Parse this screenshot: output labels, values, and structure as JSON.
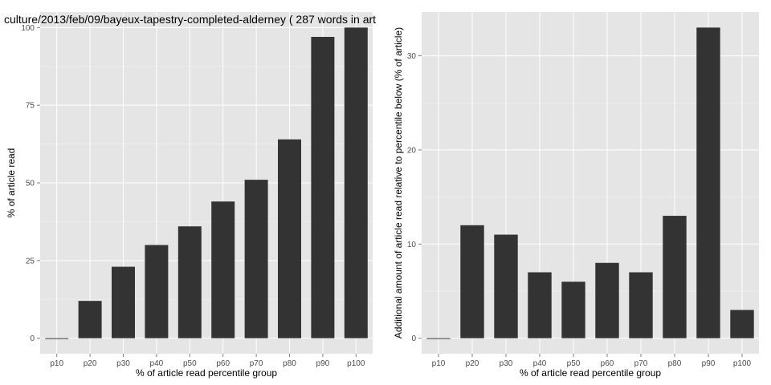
{
  "chart_data": [
    {
      "type": "bar",
      "title": "culture/2013/feb/09/bayeux-tapestry-completed-alderney ( 287 words in art",
      "xlabel": "% of article read percentile group",
      "ylabel": "% of article read",
      "categories": [
        "p10",
        "p20",
        "p30",
        "p40",
        "p50",
        "p60",
        "p70",
        "p80",
        "p90",
        "p100"
      ],
      "values": [
        0,
        12,
        23,
        30,
        36,
        44,
        51,
        64,
        97,
        100
      ],
      "ylim": [
        -5,
        105
      ],
      "yticks": [
        0,
        25,
        50,
        75,
        100
      ],
      "grid": true,
      "colors": {
        "bar": "#333333",
        "panel": "#e5e5e5",
        "grid": "#ffffff",
        "grid_minor": "#f2f2f2"
      }
    },
    {
      "type": "bar",
      "title": "",
      "xlabel": "% of article read percentile group",
      "ylabel": "Additional amount of article read relative to percentile below (% of article)",
      "categories": [
        "p10",
        "p20",
        "p30",
        "p40",
        "p50",
        "p60",
        "p70",
        "p80",
        "p90",
        "p100"
      ],
      "values": [
        0,
        12,
        11,
        7,
        6,
        8,
        7,
        13,
        33,
        3
      ],
      "ylim": [
        -1.65,
        34.65
      ],
      "yticks": [
        0,
        10,
        20,
        30
      ],
      "grid": true,
      "colors": {
        "bar": "#333333",
        "panel": "#e5e5e5",
        "grid": "#ffffff",
        "grid_minor": "#f2f2f2"
      }
    }
  ]
}
